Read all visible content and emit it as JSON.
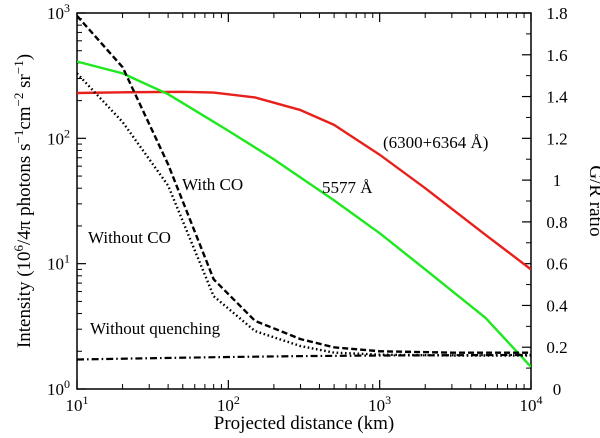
{
  "chart_data": {
    "type": "line",
    "title": "",
    "xlabel": "Projected distance (km)",
    "ylabel_left": "Intensity (10^6/4π photons s^-1 cm^-2 sr^-1)",
    "ylabel_right": "G/R ratio",
    "x_scale": "log",
    "xlim": [
      10,
      10000
    ],
    "y_left_scale": "log",
    "ylim_left": [
      1,
      1000
    ],
    "ylim_right": [
      0,
      1.8
    ],
    "grid": false,
    "x_ticks": [
      {
        "base": "10",
        "exp": "1"
      },
      {
        "base": "10",
        "exp": "2"
      },
      {
        "base": "10",
        "exp": "3"
      },
      {
        "base": "10",
        "exp": "4"
      }
    ],
    "y_left_ticks": [
      {
        "base": "10",
        "exp": "0"
      },
      {
        "base": "10",
        "exp": "1"
      },
      {
        "base": "10",
        "exp": "2"
      },
      {
        "base": "10",
        "exp": "3"
      }
    ],
    "y_right_ticks": [
      "0",
      "0.2",
      "0.4",
      "0.6",
      "0.8",
      "1",
      "1.2",
      "1.4",
      "1.6",
      "1.8"
    ],
    "series": [
      {
        "name": "(6300+6364 Å)",
        "axis": "left",
        "color": "#e8201c",
        "style": "solid",
        "x": [
          10,
          20,
          50,
          80,
          150,
          300,
          500,
          1000,
          2000,
          5000,
          10000
        ],
        "y": [
          230,
          233,
          235,
          232,
          212,
          168,
          128,
          74,
          40,
          17,
          9
        ]
      },
      {
        "name": "5577 Å",
        "axis": "left",
        "color": "#1ee81e",
        "style": "solid",
        "x": [
          10,
          20,
          40,
          100,
          200,
          500,
          1000,
          2000,
          5000,
          10000
        ],
        "y": [
          410,
          330,
          225,
          115,
          68,
          32,
          17.5,
          9,
          3.7,
          1.5
        ]
      },
      {
        "name": "With CO",
        "axis": "left",
        "color": "#000000",
        "style": "dashed",
        "x": [
          10,
          20,
          40,
          80,
          150,
          300,
          500,
          1000,
          3000,
          10000
        ],
        "y": [
          950,
          370,
          62,
          7.5,
          3.5,
          2.5,
          2.15,
          2.0,
          1.95,
          1.95
        ]
      },
      {
        "name": "Without CO",
        "axis": "left",
        "color": "#000000",
        "style": "dotted",
        "x": [
          10,
          20,
          40,
          80,
          150,
          300,
          500,
          1000,
          3000,
          10000
        ],
        "y": [
          330,
          135,
          42,
          5.5,
          2.9,
          2.2,
          1.95,
          1.88,
          1.85,
          1.85
        ]
      },
      {
        "name": "Without quenching",
        "axis": "left",
        "color": "#000000",
        "style": "dashdot",
        "x": [
          10,
          30,
          100,
          300,
          1000,
          3000,
          10000
        ],
        "y": [
          1.72,
          1.76,
          1.8,
          1.83,
          1.85,
          1.86,
          1.87
        ]
      }
    ],
    "annotations": [
      {
        "text": "(6300+6364 Å)",
        "series": "(6300+6364 Å)"
      },
      {
        "text": "5577 Å",
        "series": "5577 Å"
      },
      {
        "text": "With CO",
        "series": "With CO"
      },
      {
        "text": "Without CO",
        "series": "Without CO"
      },
      {
        "text": "Without quenching",
        "series": "Without quenching"
      }
    ]
  }
}
